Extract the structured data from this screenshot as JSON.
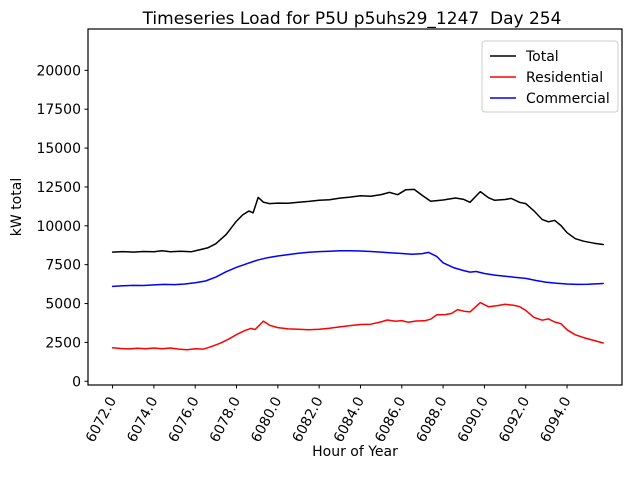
{
  "title": "Timeseries Load for P5U p5uhs29_1247  Day 254",
  "chart_data": {
    "type": "line",
    "title": "Timeseries Load for P5U p5uhs29_1247  Day 254",
    "xlabel": "Hour of Year",
    "ylabel": "kW total",
    "grid": false,
    "xlim": [
      6070.81,
      6096.66
    ],
    "ylim": [
      -240,
      22660
    ],
    "x_ticks": [
      6072,
      6074,
      6076,
      6078,
      6080,
      6082,
      6084,
      6086,
      6088,
      6090,
      6092,
      6094
    ],
    "x_tick_labels": [
      "6072.0",
      "6074.0",
      "6076.0",
      "6078.0",
      "6080.0",
      "6082.0",
      "6084.0",
      "6086.0",
      "6088.0",
      "6090.0",
      "6092.0",
      "6094.0"
    ],
    "x_tick_rotation_deg": 62,
    "y_ticks": [
      0,
      2500,
      5000,
      7500,
      10000,
      12500,
      15000,
      17500,
      20000
    ],
    "y_tick_labels": [
      "0",
      "2500",
      "5000",
      "7500",
      "10000",
      "12500",
      "15000",
      "17500",
      "20000"
    ],
    "legend": {
      "position": "upper right",
      "entries": [
        "Total",
        "Residential",
        "Commercial"
      ],
      "border_color": "#cccccc",
      "background": "#ffffff"
    },
    "series": [
      {
        "name": "Total",
        "color": "#000000",
        "points": [
          [
            6072.0,
            8310
          ],
          [
            6072.5,
            8340
          ],
          [
            6073.0,
            8310
          ],
          [
            6073.5,
            8350
          ],
          [
            6074.0,
            8330
          ],
          [
            6074.4,
            8390
          ],
          [
            6074.8,
            8330
          ],
          [
            6075.3,
            8360
          ],
          [
            6075.8,
            8330
          ],
          [
            6076.2,
            8450
          ],
          [
            6076.6,
            8580
          ],
          [
            6077.0,
            8850
          ],
          [
            6077.5,
            9450
          ],
          [
            6078.0,
            10300
          ],
          [
            6078.3,
            10700
          ],
          [
            6078.6,
            10950
          ],
          [
            6078.8,
            10840
          ],
          [
            6079.05,
            11830
          ],
          [
            6079.3,
            11520
          ],
          [
            6079.6,
            11430
          ],
          [
            6080.0,
            11460
          ],
          [
            6080.5,
            11450
          ],
          [
            6081.0,
            11510
          ],
          [
            6081.5,
            11570
          ],
          [
            6082.0,
            11650
          ],
          [
            6082.5,
            11670
          ],
          [
            6083.0,
            11780
          ],
          [
            6083.5,
            11850
          ],
          [
            6084.0,
            11930
          ],
          [
            6084.5,
            11900
          ],
          [
            6085.0,
            12010
          ],
          [
            6085.4,
            12150
          ],
          [
            6085.8,
            12000
          ],
          [
            6086.2,
            12320
          ],
          [
            6086.6,
            12340
          ],
          [
            6087.0,
            11950
          ],
          [
            6087.4,
            11580
          ],
          [
            6088.0,
            11660
          ],
          [
            6088.6,
            11790
          ],
          [
            6089.0,
            11700
          ],
          [
            6089.3,
            11510
          ],
          [
            6089.8,
            12200
          ],
          [
            6090.2,
            11800
          ],
          [
            6090.5,
            11640
          ],
          [
            6091.0,
            11690
          ],
          [
            6091.3,
            11760
          ],
          [
            6091.7,
            11510
          ],
          [
            6092.0,
            11430
          ],
          [
            6092.4,
            10960
          ],
          [
            6092.8,
            10400
          ],
          [
            6093.1,
            10260
          ],
          [
            6093.4,
            10350
          ],
          [
            6093.7,
            10020
          ],
          [
            6094.0,
            9560
          ],
          [
            6094.4,
            9170
          ],
          [
            6094.8,
            9010
          ],
          [
            6095.3,
            8880
          ],
          [
            6095.75,
            8800
          ]
        ]
      },
      {
        "name": "Residential",
        "color": "#ff0000",
        "points": [
          [
            6072.0,
            2150
          ],
          [
            6072.4,
            2110
          ],
          [
            6072.8,
            2080
          ],
          [
            6073.2,
            2130
          ],
          [
            6073.6,
            2090
          ],
          [
            6074.0,
            2140
          ],
          [
            6074.4,
            2090
          ],
          [
            6074.8,
            2140
          ],
          [
            6075.2,
            2070
          ],
          [
            6075.6,
            2030
          ],
          [
            6076.0,
            2090
          ],
          [
            6076.4,
            2070
          ],
          [
            6076.8,
            2240
          ],
          [
            6077.2,
            2440
          ],
          [
            6077.6,
            2700
          ],
          [
            6078.0,
            3000
          ],
          [
            6078.4,
            3260
          ],
          [
            6078.7,
            3400
          ],
          [
            6078.9,
            3330
          ],
          [
            6079.3,
            3870
          ],
          [
            6079.6,
            3600
          ],
          [
            6080.0,
            3450
          ],
          [
            6080.5,
            3370
          ],
          [
            6081.0,
            3340
          ],
          [
            6081.5,
            3320
          ],
          [
            6082.0,
            3350
          ],
          [
            6082.5,
            3410
          ],
          [
            6083.0,
            3500
          ],
          [
            6083.5,
            3580
          ],
          [
            6084.0,
            3650
          ],
          [
            6084.5,
            3670
          ],
          [
            6085.0,
            3820
          ],
          [
            6085.3,
            3940
          ],
          [
            6085.7,
            3860
          ],
          [
            6086.0,
            3900
          ],
          [
            6086.3,
            3800
          ],
          [
            6086.7,
            3880
          ],
          [
            6087.1,
            3890
          ],
          [
            6087.4,
            3990
          ],
          [
            6087.7,
            4280
          ],
          [
            6088.1,
            4290
          ],
          [
            6088.4,
            4360
          ],
          [
            6088.7,
            4610
          ],
          [
            6089.0,
            4510
          ],
          [
            6089.3,
            4460
          ],
          [
            6089.8,
            5060
          ],
          [
            6090.2,
            4790
          ],
          [
            6090.6,
            4860
          ],
          [
            6091.0,
            4950
          ],
          [
            6091.4,
            4890
          ],
          [
            6091.7,
            4800
          ],
          [
            6092.0,
            4560
          ],
          [
            6092.4,
            4110
          ],
          [
            6092.8,
            3930
          ],
          [
            6093.1,
            4010
          ],
          [
            6093.4,
            3810
          ],
          [
            6093.7,
            3700
          ],
          [
            6094.0,
            3310
          ],
          [
            6094.4,
            2990
          ],
          [
            6094.8,
            2810
          ],
          [
            6095.2,
            2660
          ],
          [
            6095.75,
            2460
          ]
        ]
      },
      {
        "name": "Commercial",
        "color": "#0000ff",
        "points": [
          [
            6072.0,
            6100
          ],
          [
            6072.5,
            6140
          ],
          [
            6073.0,
            6170
          ],
          [
            6073.5,
            6160
          ],
          [
            6074.0,
            6200
          ],
          [
            6074.5,
            6230
          ],
          [
            6075.0,
            6220
          ],
          [
            6075.5,
            6260
          ],
          [
            6076.0,
            6340
          ],
          [
            6076.5,
            6450
          ],
          [
            6077.0,
            6700
          ],
          [
            6077.5,
            7050
          ],
          [
            6078.0,
            7330
          ],
          [
            6078.5,
            7560
          ],
          [
            6079.0,
            7790
          ],
          [
            6079.5,
            7950
          ],
          [
            6080.0,
            8060
          ],
          [
            6080.5,
            8150
          ],
          [
            6081.0,
            8240
          ],
          [
            6081.5,
            8300
          ],
          [
            6082.0,
            8340
          ],
          [
            6082.5,
            8370
          ],
          [
            6083.0,
            8390
          ],
          [
            6083.5,
            8390
          ],
          [
            6084.0,
            8380
          ],
          [
            6084.5,
            8350
          ],
          [
            6085.0,
            8310
          ],
          [
            6085.5,
            8260
          ],
          [
            6086.0,
            8220
          ],
          [
            6086.5,
            8170
          ],
          [
            6087.0,
            8210
          ],
          [
            6087.3,
            8290
          ],
          [
            6087.7,
            8020
          ],
          [
            6088.0,
            7620
          ],
          [
            6088.5,
            7310
          ],
          [
            6089.0,
            7120
          ],
          [
            6089.3,
            7020
          ],
          [
            6089.6,
            7060
          ],
          [
            6090.0,
            6930
          ],
          [
            6090.5,
            6830
          ],
          [
            6091.0,
            6760
          ],
          [
            6091.5,
            6680
          ],
          [
            6092.0,
            6620
          ],
          [
            6092.5,
            6480
          ],
          [
            6093.0,
            6370
          ],
          [
            6093.5,
            6300
          ],
          [
            6094.0,
            6260
          ],
          [
            6094.5,
            6230
          ],
          [
            6095.0,
            6240
          ],
          [
            6095.75,
            6290
          ]
        ]
      }
    ]
  }
}
